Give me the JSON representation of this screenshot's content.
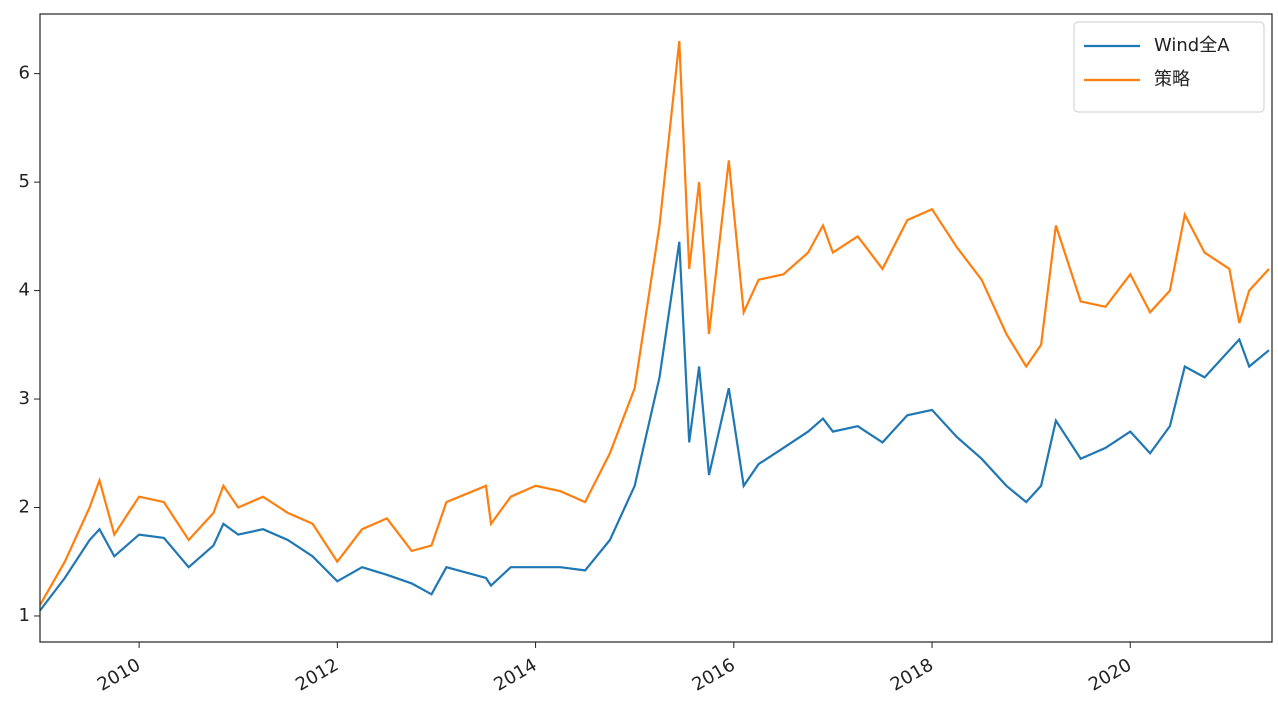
{
  "chart_data": {
    "type": "line",
    "x": [
      2009.0,
      2009.25,
      2009.5,
      2009.6,
      2009.75,
      2010.0,
      2010.25,
      2010.5,
      2010.75,
      2010.85,
      2011.0,
      2011.25,
      2011.5,
      2011.75,
      2012.0,
      2012.25,
      2012.5,
      2012.75,
      2012.95,
      2013.1,
      2013.5,
      2013.55,
      2013.75,
      2014.0,
      2014.25,
      2014.5,
      2014.75,
      2015.0,
      2015.25,
      2015.45,
      2015.55,
      2015.65,
      2015.75,
      2015.95,
      2016.1,
      2016.25,
      2016.5,
      2016.75,
      2016.9,
      2017.0,
      2017.25,
      2017.5,
      2017.75,
      2018.0,
      2018.25,
      2018.5,
      2018.75,
      2018.95,
      2019.1,
      2019.25,
      2019.5,
      2019.75,
      2020.0,
      2020.2,
      2020.4,
      2020.55,
      2020.75,
      2021.0,
      2021.1,
      2021.2,
      2021.4
    ],
    "series": [
      {
        "name": "Wind全A",
        "color": "#1f77b4",
        "values": [
          1.05,
          1.35,
          1.7,
          1.8,
          1.55,
          1.75,
          1.72,
          1.45,
          1.65,
          1.85,
          1.75,
          1.8,
          1.7,
          1.55,
          1.32,
          1.45,
          1.38,
          1.3,
          1.2,
          1.45,
          1.35,
          1.28,
          1.45,
          1.45,
          1.45,
          1.42,
          1.7,
          2.2,
          3.2,
          4.45,
          2.6,
          3.3,
          2.3,
          3.1,
          2.2,
          2.4,
          2.55,
          2.7,
          2.82,
          2.7,
          2.75,
          2.6,
          2.85,
          2.9,
          2.65,
          2.45,
          2.2,
          2.05,
          2.2,
          2.8,
          2.45,
          2.55,
          2.7,
          2.5,
          2.75,
          3.3,
          3.2,
          3.45,
          3.55,
          3.3,
          3.45
        ]
      },
      {
        "name": "策略",
        "color": "#ff7f0e",
        "values": [
          1.1,
          1.5,
          2.0,
          2.25,
          1.75,
          2.1,
          2.05,
          1.7,
          1.95,
          2.2,
          2.0,
          2.1,
          1.95,
          1.85,
          1.5,
          1.8,
          1.9,
          1.6,
          1.65,
          2.05,
          2.2,
          1.85,
          2.1,
          2.2,
          2.15,
          2.05,
          2.5,
          3.1,
          4.6,
          6.3,
          4.2,
          5.0,
          3.6,
          5.2,
          3.8,
          4.1,
          4.15,
          4.35,
          4.6,
          4.35,
          4.5,
          4.2,
          4.65,
          4.75,
          4.4,
          4.1,
          3.6,
          3.3,
          3.5,
          4.6,
          3.9,
          3.85,
          4.15,
          3.8,
          4.0,
          4.7,
          4.35,
          4.2,
          3.7,
          4.0,
          4.2
        ]
      }
    ],
    "xlim": [
      2009.0,
      2021.43
    ],
    "xticks": [
      2010,
      2012,
      2014,
      2016,
      2018,
      2020
    ],
    "ylim": [
      0.76,
      6.55
    ],
    "yticks": [
      1,
      2,
      3,
      4,
      5,
      6
    ],
    "legend": "upper right",
    "grid": false
  }
}
